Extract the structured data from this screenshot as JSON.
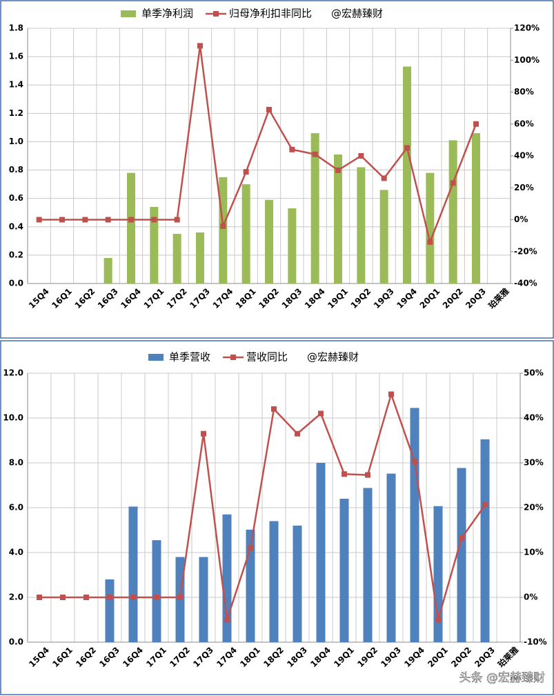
{
  "chart_data": [
    {
      "type": "bar",
      "categories": [
        "15Q4",
        "16Q1",
        "16Q2",
        "16Q3",
        "16Q4",
        "17Q1",
        "17Q2",
        "17Q3",
        "17Q4",
        "18Q1",
        "18Q2",
        "18Q3",
        "18Q4",
        "19Q1",
        "19Q2",
        "19Q3",
        "19Q4",
        "20Q1",
        "20Q2",
        "20Q3",
        "珀莱雅"
      ],
      "series": [
        {
          "name": "单季净利润",
          "type": "bar",
          "color": "#9bbb59",
          "values": [
            null,
            null,
            null,
            0.18,
            0.78,
            0.54,
            0.35,
            0.36,
            0.75,
            0.7,
            0.59,
            0.53,
            1.06,
            0.91,
            0.82,
            0.66,
            1.53,
            0.78,
            1.01,
            1.06,
            null
          ]
        },
        {
          "name": "归母净利扣非同比",
          "type": "line",
          "axis": "y2",
          "color": "#c0504d",
          "values": [
            0,
            0,
            0,
            0,
            0,
            0,
            0,
            109,
            -4,
            30,
            69,
            44,
            41,
            31,
            40,
            26,
            45,
            -14,
            23,
            60,
            null
          ]
        }
      ],
      "watermark": "@宏赫臻财",
      "ylim": [
        0,
        1.8
      ],
      "yticks": [
        {
          "value": 0,
          "label": "0.0"
        },
        0.2,
        0.4,
        0.6,
        0.8,
        {
          "value": 1,
          "label": "1.0"
        },
        1.2,
        1.4,
        1.6,
        1.8
      ],
      "y2lim": [
        -40,
        120
      ],
      "y2ticks": [
        {
          "value": -40,
          "label": "-40%"
        },
        {
          "value": -20,
          "label": "-20%"
        },
        {
          "value": 0,
          "label": "0%"
        },
        {
          "value": 20,
          "label": "20%"
        },
        {
          "value": 40,
          "label": "40%"
        },
        {
          "value": 60,
          "label": "60%"
        },
        {
          "value": 80,
          "label": "80%"
        },
        {
          "value": 100,
          "label": "100%"
        },
        {
          "value": 120,
          "label": "120%"
        }
      ],
      "grid": true
    },
    {
      "type": "bar",
      "categories": [
        "15Q4",
        "16Q1",
        "16Q2",
        "16Q3",
        "16Q4",
        "17Q1",
        "17Q2",
        "17Q3",
        "17Q4",
        "18Q1",
        "18Q2",
        "18Q3",
        "18Q4",
        "19Q1",
        "19Q2",
        "19Q3",
        "19Q4",
        "20Q1",
        "20Q2",
        "20Q3",
        "珀莱雅"
      ],
      "series": [
        {
          "name": "单季营收",
          "type": "bar",
          "color": "#4f81bd",
          "values": [
            null,
            null,
            null,
            2.8,
            6.05,
            4.55,
            3.8,
            3.8,
            5.7,
            5.02,
            5.4,
            5.2,
            8.0,
            6.4,
            6.88,
            7.52,
            10.45,
            6.07,
            7.77,
            9.05,
            null
          ]
        },
        {
          "name": "营收同比",
          "type": "line",
          "axis": "y2",
          "color": "#c0504d",
          "values": [
            0,
            0,
            0,
            0,
            0,
            0,
            0,
            36.5,
            -5,
            11,
            42,
            36.5,
            41,
            27.5,
            27.3,
            45.3,
            30.3,
            -5,
            13.2,
            20.6,
            null
          ]
        }
      ],
      "watermark": "@宏赫臻财",
      "ylim": [
        0,
        12
      ],
      "yticks": [
        {
          "value": 0,
          "label": "0.0"
        },
        {
          "value": 2,
          "label": "2.0"
        },
        {
          "value": 4,
          "label": "4.0"
        },
        {
          "value": 6,
          "label": "6.0"
        },
        {
          "value": 8,
          "label": "8.0"
        },
        {
          "value": 10,
          "label": "10.0"
        },
        {
          "value": 12,
          "label": "12.0"
        }
      ],
      "y2lim": [
        -10,
        50
      ],
      "y2ticks": [
        {
          "value": -10,
          "label": "-10%"
        },
        {
          "value": 0,
          "label": "0%"
        },
        {
          "value": 10,
          "label": "10%"
        },
        {
          "value": 20,
          "label": "20%"
        },
        {
          "value": 30,
          "label": "30%"
        },
        {
          "value": 40,
          "label": "40%"
        },
        {
          "value": 50,
          "label": "50%"
        }
      ],
      "grid": true
    }
  ],
  "footer_watermark": "头条 @宏赫臻财"
}
